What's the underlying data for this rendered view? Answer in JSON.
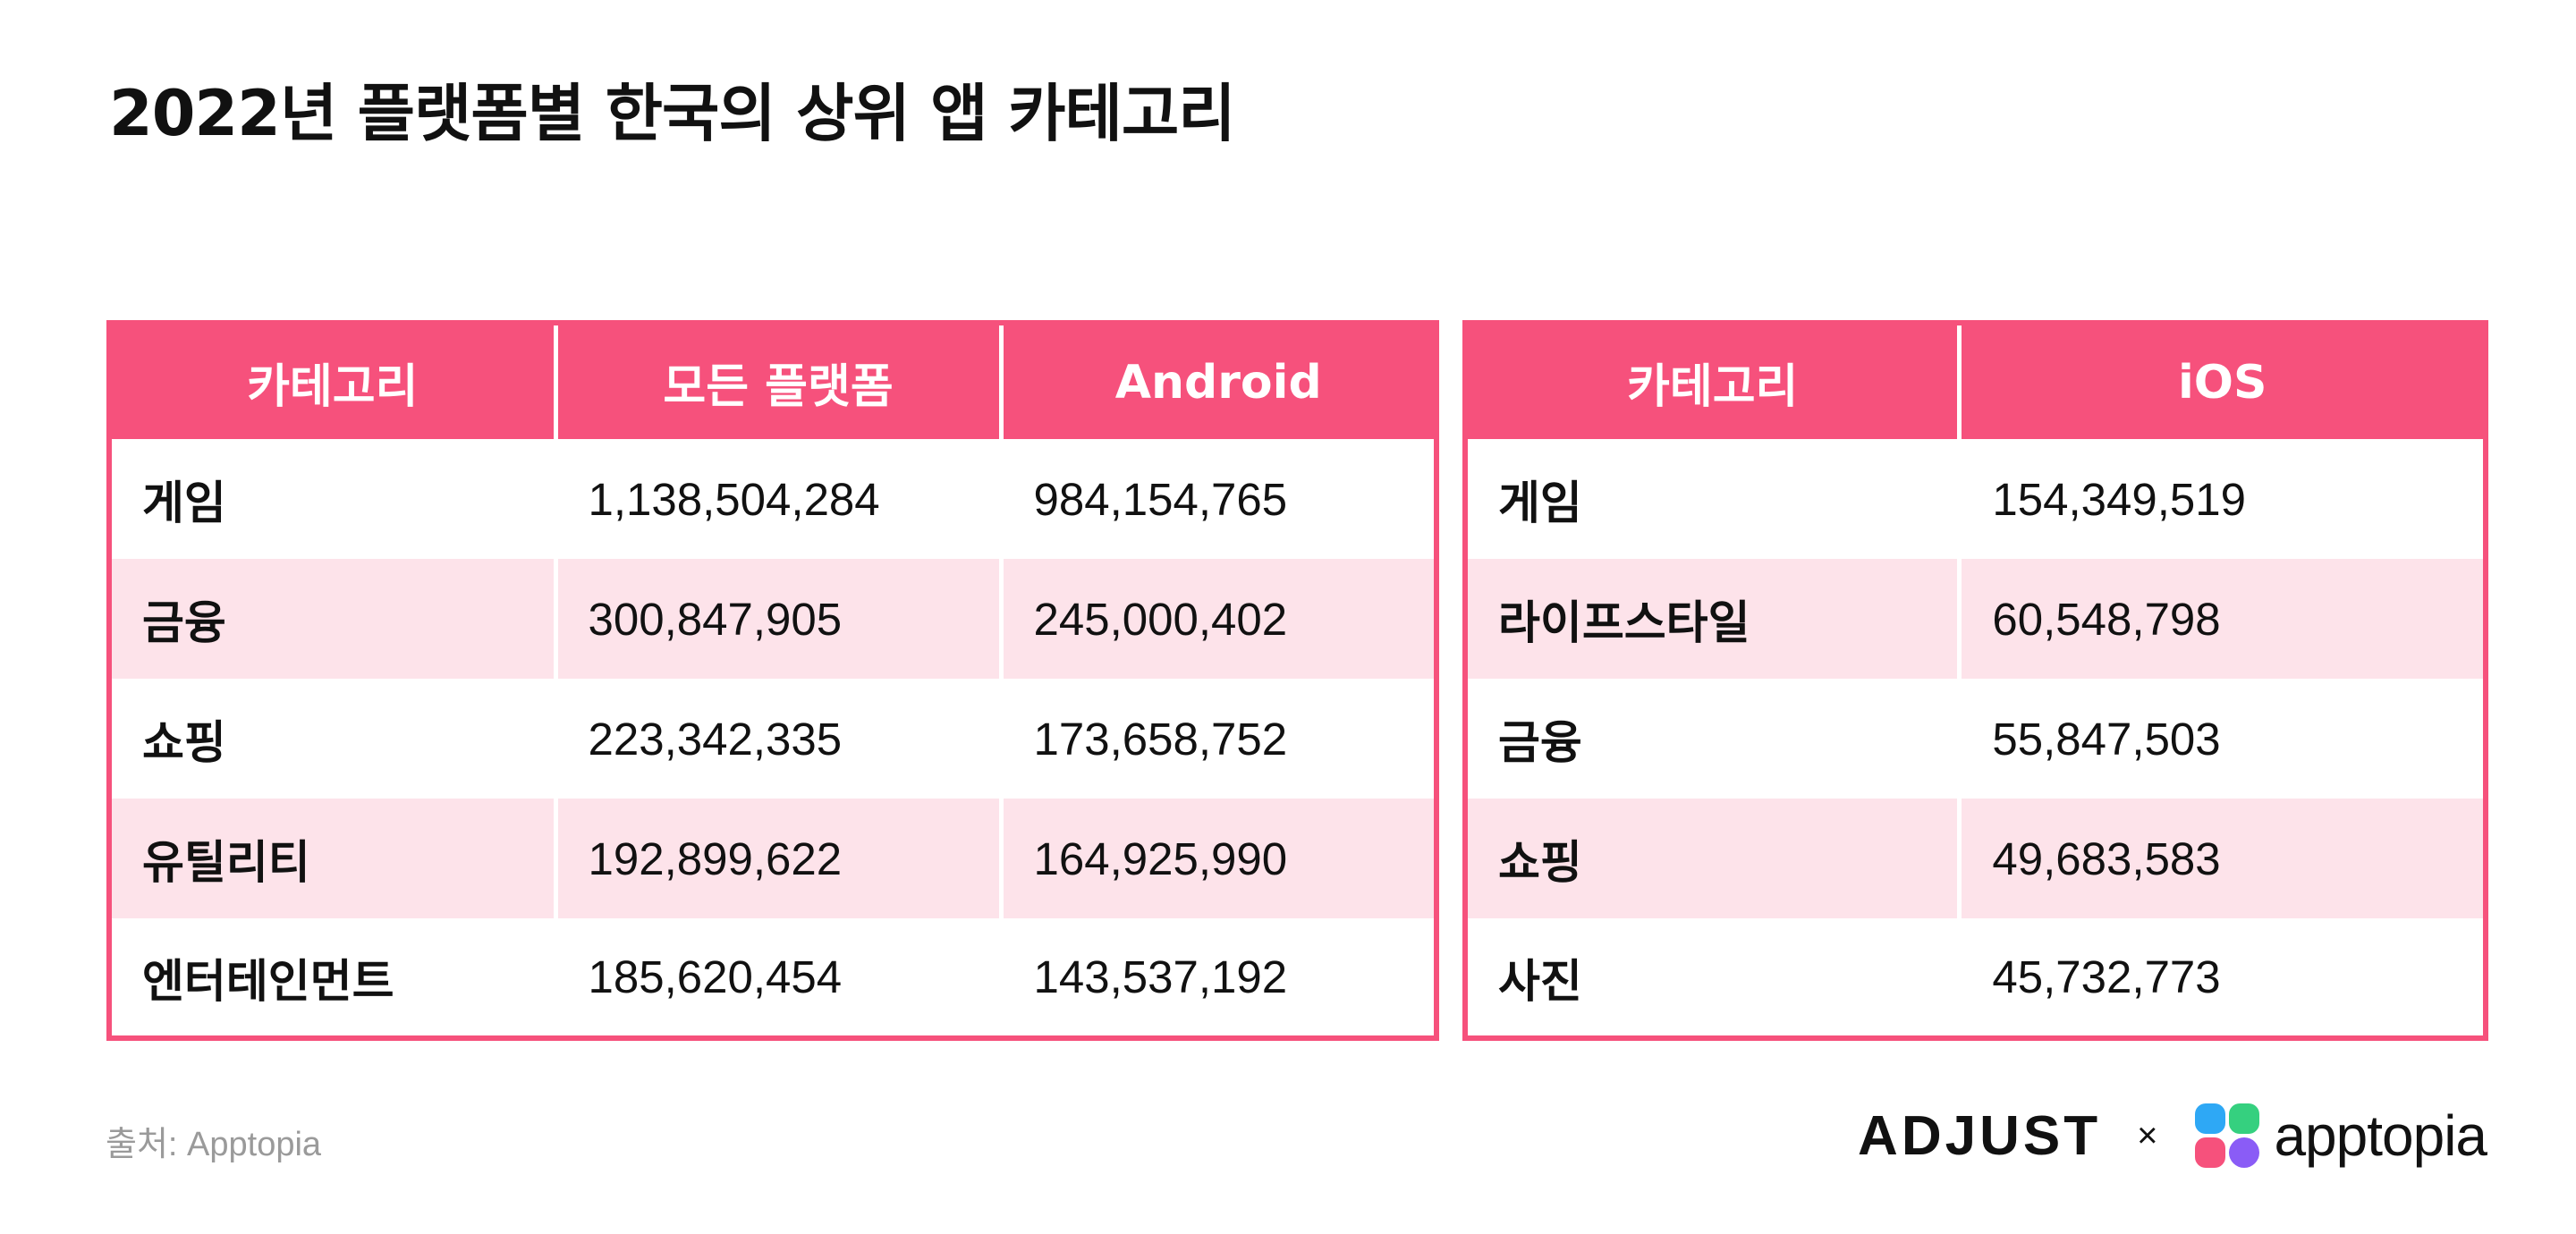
{
  "title": "2022년 플랫폼별 한국의 상위 앱 카테고리",
  "left_table": {
    "headers": [
      "카테고리",
      "모든 플랫폼",
      "Android"
    ],
    "rows": [
      [
        "게임",
        "1,138,504,284",
        "984,154,765"
      ],
      [
        "금융",
        "300,847,905",
        "245,000,402"
      ],
      [
        "쇼핑",
        "223,342,335",
        "173,658,752"
      ],
      [
        "유틸리티",
        "192,899,622",
        "164,925,990"
      ],
      [
        "엔터테인먼트",
        "185,620,454",
        "143,537,192"
      ]
    ]
  },
  "right_table": {
    "headers": [
      "카테고리",
      "iOS"
    ],
    "rows": [
      [
        "게임",
        "154,349,519"
      ],
      [
        "라이프스타일",
        "60,548,798"
      ],
      [
        "금융",
        "55,847,503"
      ],
      [
        "쇼핑",
        "49,683,583"
      ],
      [
        "사진",
        "45,732,773"
      ]
    ]
  },
  "footer": {
    "source": "출처: Apptopia",
    "logo_adjust": "ADJUST",
    "times": "×",
    "logo_apptopia": "apptopia"
  },
  "colors": {
    "accent": "#f6517c",
    "row_alt": "#fde3ea",
    "apptopia_blue": "#2ea8f5",
    "apptopia_green": "#35d07f",
    "apptopia_pink": "#f6517c",
    "apptopia_purple": "#8a5cf6"
  },
  "icons": [
    "adjust-logo",
    "apptopia-logo-icon"
  ]
}
